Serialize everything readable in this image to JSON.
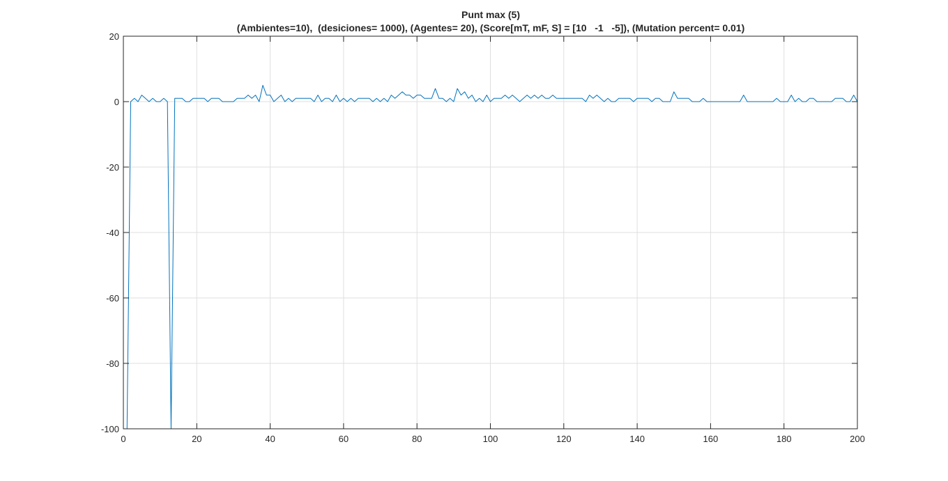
{
  "chart_data": {
    "type": "line",
    "title": "Punt max (5)",
    "subtitle": "(Ambientes=10),  (desiciones= 1000), (Agentes= 20), (Score[mT, mF, S] = [10   -1   -5]), (Mutation percent= 0.01)",
    "xlabel": "",
    "ylabel": "",
    "xlim": [
      0,
      200
    ],
    "ylim": [
      -100,
      20
    ],
    "xticks": [
      "0",
      "20",
      "40",
      "60",
      "80",
      "100",
      "120",
      "140",
      "160",
      "180",
      "200"
    ],
    "yticks": [
      "20",
      "0",
      "-20",
      "-40",
      "-60",
      "-80",
      "-100"
    ],
    "grid": true,
    "line_color": "#0072BD",
    "series": [
      {
        "x": [
          1,
          2,
          3,
          4,
          5,
          6,
          7,
          8,
          9,
          10,
          11,
          12,
          13,
          14,
          15,
          16,
          17,
          18,
          19,
          20,
          21,
          22,
          23,
          24,
          25,
          26,
          27,
          28,
          29,
          30,
          31,
          32,
          33,
          34,
          35,
          36,
          37,
          38,
          39,
          40,
          41,
          42,
          43,
          44,
          45,
          46,
          47,
          48,
          49,
          50,
          51,
          52,
          53,
          54,
          55,
          56,
          57,
          58,
          59,
          60,
          61,
          62,
          63,
          64,
          65,
          66,
          67,
          68,
          69,
          70,
          71,
          72,
          73,
          74,
          75,
          76,
          77,
          78,
          79,
          80,
          81,
          82,
          83,
          84,
          85,
          86,
          87,
          88,
          89,
          90,
          91,
          92,
          93,
          94,
          95,
          96,
          97,
          98,
          99,
          100,
          101,
          102,
          103,
          104,
          105,
          106,
          107,
          108,
          109,
          110,
          111,
          112,
          113,
          114,
          115,
          116,
          117,
          118,
          119,
          120,
          121,
          122,
          123,
          124,
          125,
          126,
          127,
          128,
          129,
          130,
          131,
          132,
          133,
          134,
          135,
          136,
          137,
          138,
          139,
          140,
          141,
          142,
          143,
          144,
          145,
          146,
          147,
          148,
          149,
          150,
          151,
          152,
          153,
          154,
          155,
          156,
          157,
          158,
          159,
          160,
          161,
          162,
          163,
          164,
          165,
          166,
          167,
          168,
          169,
          170,
          171,
          172,
          173,
          174,
          175,
          176,
          177,
          178,
          179,
          180,
          181,
          182,
          183,
          184,
          185,
          186,
          187,
          188,
          189,
          190,
          191,
          192,
          193,
          194,
          195,
          196,
          197,
          198,
          199,
          200
        ],
        "values": [
          -100,
          0,
          1,
          0,
          2,
          1,
          0,
          1,
          0,
          0,
          1,
          0,
          -100,
          1,
          1,
          1,
          0,
          0,
          1,
          1,
          1,
          1,
          0,
          1,
          1,
          1,
          0,
          0,
          0,
          0,
          1,
          1,
          1,
          2,
          1,
          2,
          0,
          5,
          2,
          2,
          0,
          1,
          2,
          0,
          1,
          0,
          1,
          1,
          1,
          1,
          1,
          0,
          2,
          0,
          1,
          1,
          0,
          2,
          0,
          1,
          0,
          1,
          0,
          1,
          1,
          1,
          1,
          0,
          1,
          0,
          1,
          0,
          2,
          1,
          2,
          3,
          2,
          2,
          1,
          2,
          2,
          1,
          1,
          1,
          4,
          1,
          1,
          0,
          1,
          0,
          4,
          2,
          3,
          1,
          2,
          0,
          1,
          0,
          2,
          0,
          1,
          1,
          1,
          2,
          1,
          2,
          1,
          0,
          1,
          2,
          1,
          2,
          1,
          2,
          1,
          1,
          2,
          1,
          1,
          1,
          1,
          1,
          1,
          1,
          1,
          0,
          2,
          1,
          2,
          1,
          0,
          1,
          0,
          0,
          1,
          1,
          1,
          1,
          0,
          1,
          1,
          1,
          1,
          0,
          1,
          1,
          0,
          0,
          0,
          3,
          1,
          1,
          1,
          1,
          0,
          0,
          0,
          1,
          0,
          0,
          0,
          0,
          0,
          0,
          0,
          0,
          0,
          0,
          2,
          0,
          0,
          0,
          0,
          0,
          0,
          0,
          0,
          1,
          0,
          0,
          0,
          2,
          0,
          1,
          0,
          0,
          1,
          1,
          0,
          0,
          0,
          0,
          0,
          1,
          1,
          1,
          0,
          0,
          2,
          0
        ]
      }
    ]
  }
}
